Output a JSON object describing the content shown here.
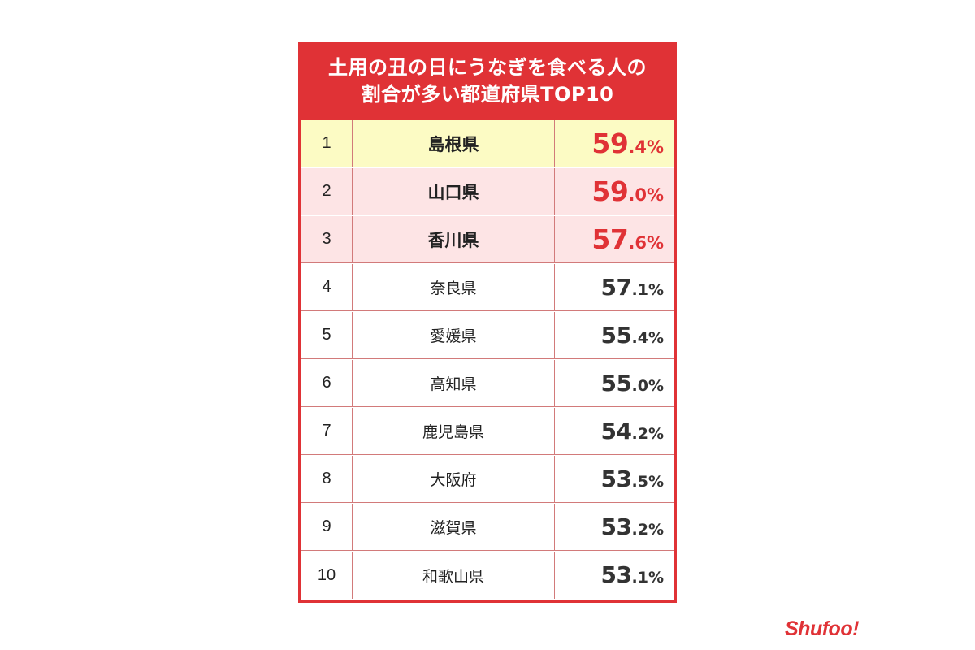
{
  "colors": {
    "accent": "#e03236",
    "rank1_bg": "#fcfbc4",
    "rank2_3_bg": "#fde4e5",
    "text": "#222222"
  },
  "title_lines": [
    "土用の丑の日にうなぎを食べる人の",
    "割合が多い都道府県TOP10"
  ],
  "chart_data": {
    "type": "table",
    "title": "土用の丑の日にうなぎを食べる人の割合が多い都道府県TOP10",
    "rows": [
      {
        "rank": "1",
        "prefecture": "島根県",
        "value": 59.4,
        "int": "59",
        "dec": ".4%"
      },
      {
        "rank": "2",
        "prefecture": "山口県",
        "value": 59.0,
        "int": "59",
        "dec": ".0%"
      },
      {
        "rank": "3",
        "prefecture": "香川県",
        "value": 57.6,
        "int": "57",
        "dec": ".6%"
      },
      {
        "rank": "4",
        "prefecture": "奈良県",
        "value": 57.1,
        "int": "57",
        "dec": ".1%"
      },
      {
        "rank": "5",
        "prefecture": "愛媛県",
        "value": 55.4,
        "int": "55",
        "dec": ".4%"
      },
      {
        "rank": "6",
        "prefecture": "高知県",
        "value": 55.0,
        "int": "55",
        "dec": ".0%"
      },
      {
        "rank": "7",
        "prefecture": "鹿児島県",
        "value": 54.2,
        "int": "54",
        "dec": ".2%"
      },
      {
        "rank": "8",
        "prefecture": "大阪府",
        "value": 53.5,
        "int": "53",
        "dec": ".5%"
      },
      {
        "rank": "9",
        "prefecture": "滋賀県",
        "value": 53.2,
        "int": "53",
        "dec": ".2%"
      },
      {
        "rank": "10",
        "prefecture": "和歌山県",
        "value": 53.1,
        "int": "53",
        "dec": ".1%"
      }
    ]
  },
  "logo": {
    "text": "Shufoo!"
  }
}
